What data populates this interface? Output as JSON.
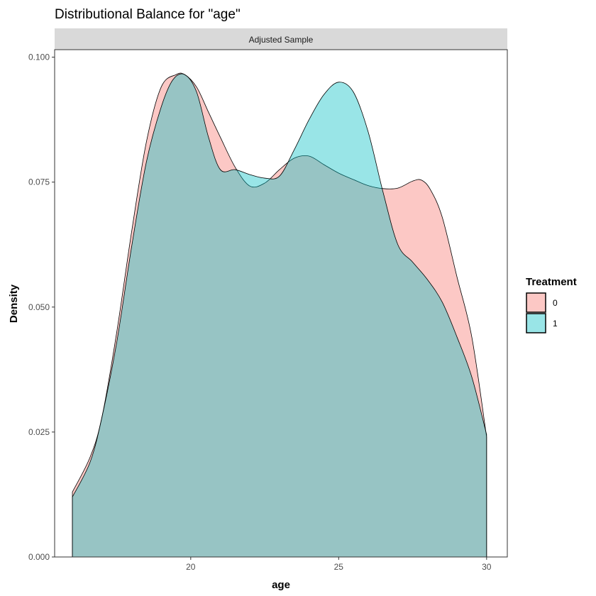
{
  "chart_data": {
    "type": "area",
    "title": "Distributional Balance for \"age\"",
    "facet": "Adjusted Sample",
    "xlabel": "age",
    "ylabel": "Density",
    "xlim": [
      15.4,
      30.7
    ],
    "ylim": [
      0,
      0.1015
    ],
    "x_ticks": [
      20,
      25,
      30
    ],
    "y_ticks": [
      0.0,
      0.025,
      0.05,
      0.075,
      0.1
    ],
    "y_tick_labels": [
      "0.000",
      "0.025",
      "0.050",
      "0.075",
      "0.100"
    ],
    "grid": false,
    "legend": {
      "title": "Treatment",
      "position": "right"
    },
    "series": [
      {
        "name": "0",
        "color": "#F8766D",
        "x": [
          16,
          16.6,
          17,
          17.5,
          18,
          18.5,
          19,
          19.5,
          19.8,
          20.2,
          20.6,
          21,
          21.5,
          22,
          22.5,
          23,
          23.5,
          24,
          24.5,
          25,
          25.5,
          26,
          26.5,
          27,
          27.5,
          27.8,
          28.1,
          28.5,
          29,
          29.5,
          30
        ],
        "values": [
          0.013,
          0.02,
          0.028,
          0.045,
          0.065,
          0.083,
          0.094,
          0.0965,
          0.0965,
          0.094,
          0.089,
          0.084,
          0.078,
          0.0742,
          0.0748,
          0.0775,
          0.0798,
          0.0802,
          0.0785,
          0.0768,
          0.0755,
          0.0743,
          0.0737,
          0.0738,
          0.0752,
          0.0754,
          0.0735,
          0.068,
          0.056,
          0.044,
          0.024
        ]
      },
      {
        "name": "1",
        "color": "#00BFC4",
        "x": [
          16,
          16.6,
          17,
          17.5,
          18,
          18.5,
          19,
          19.4,
          19.8,
          20.2,
          20.6,
          21,
          21.5,
          22,
          22.5,
          23,
          23.5,
          24,
          24.5,
          25,
          25.5,
          26,
          26.5,
          27,
          27.5,
          28,
          28.5,
          29,
          29.5,
          30
        ],
        "values": [
          0.012,
          0.019,
          0.028,
          0.043,
          0.062,
          0.079,
          0.09,
          0.0955,
          0.0965,
          0.093,
          0.084,
          0.0775,
          0.0775,
          0.0765,
          0.0758,
          0.0762,
          0.0815,
          0.0875,
          0.0925,
          0.095,
          0.093,
          0.085,
          0.073,
          0.0625,
          0.059,
          0.0555,
          0.051,
          0.044,
          0.036,
          0.0245
        ]
      }
    ]
  }
}
